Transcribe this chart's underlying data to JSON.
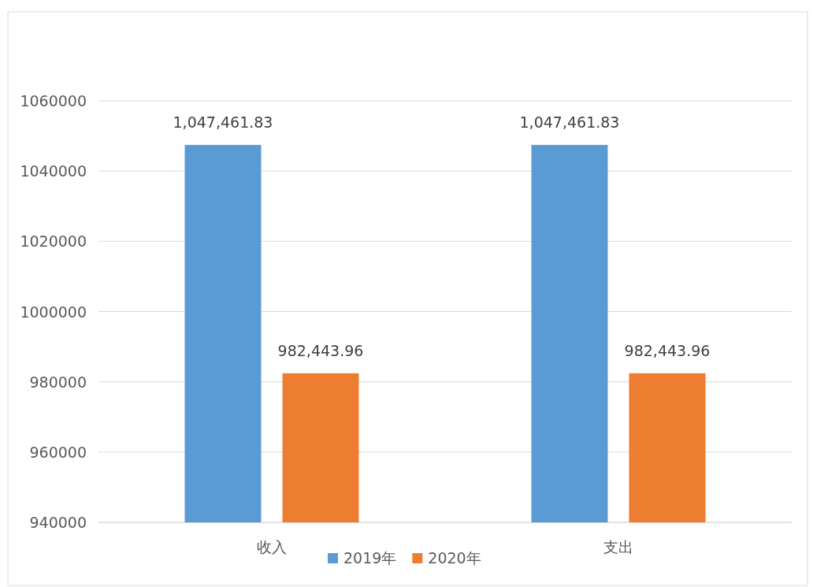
{
  "chart_data": {
    "type": "bar",
    "categories": [
      "收入",
      "支出"
    ],
    "series": [
      {
        "name": "2019年",
        "color": "#5b9bd5",
        "values": [
          1047461.83,
          1047461.83
        ],
        "value_labels": [
          "1,047,461.83",
          "1,047,461.83"
        ]
      },
      {
        "name": "2020年",
        "color": "#ed7d31",
        "values": [
          982443.96,
          982443.96
        ],
        "value_labels": [
          "982,443.96",
          "982,443.96"
        ]
      }
    ],
    "ylim": [
      940000,
      1060000
    ],
    "yticks": [
      940000,
      960000,
      980000,
      1000000,
      1020000,
      1040000,
      1060000
    ],
    "grid": "y",
    "legend": "bottom"
  }
}
